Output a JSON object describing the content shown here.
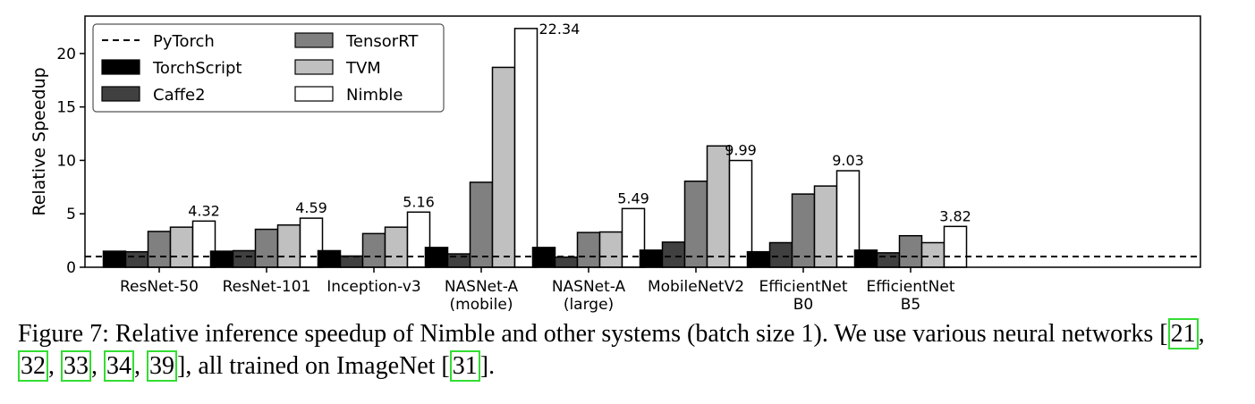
{
  "chart_data": {
    "type": "bar",
    "ylabel": "Relative Speedup",
    "xlabel": "",
    "ylim": [
      0,
      23.5
    ],
    "yticks": [
      0,
      5,
      10,
      15,
      20
    ],
    "grid": false,
    "legend_position": "top-left",
    "categories": [
      [
        "ResNet-50"
      ],
      [
        "ResNet-101"
      ],
      [
        "Inception-v3"
      ],
      [
        "NASNet-A",
        "(mobile)"
      ],
      [
        "NASNet-A",
        "(large)"
      ],
      [
        "MobileNetV2"
      ],
      [
        "EfficientNet",
        "B0"
      ],
      [
        "EfficientNet",
        "B5"
      ]
    ],
    "baseline": {
      "name": "PyTorch",
      "value": 1.0,
      "style": "dashed"
    },
    "series": [
      {
        "name": "TorchScript",
        "color": "#000000",
        "values": [
          1.5,
          1.5,
          1.55,
          1.85,
          1.85,
          1.6,
          1.45,
          1.6
        ]
      },
      {
        "name": "Caffe2",
        "color": "#404040",
        "values": [
          1.45,
          1.55,
          1.05,
          1.25,
          0.95,
          2.35,
          2.3,
          1.35
        ]
      },
      {
        "name": "TensorRT",
        "color": "#808080",
        "values": [
          3.35,
          3.55,
          3.15,
          7.95,
          3.25,
          8.05,
          6.85,
          2.95
        ]
      },
      {
        "name": "TVM",
        "color": "#c0c0c0",
        "values": [
          3.75,
          3.95,
          3.75,
          18.7,
          3.3,
          11.35,
          7.6,
          2.3
        ]
      },
      {
        "name": "Nimble",
        "color": "#ffffff",
        "values": [
          4.32,
          4.59,
          5.16,
          22.34,
          5.49,
          9.99,
          9.03,
          3.82
        ]
      }
    ],
    "data_labels": [
      "4.32",
      "4.59",
      "5.16",
      "22.34",
      "5.49",
      "9.99",
      "9.03",
      "3.82"
    ]
  },
  "caption": {
    "t1": "Figure 7: Relative inference speedup of Nimble and other systems (batch size 1). We use various neural networks [",
    "r1": "21",
    "s1": ", ",
    "r2": "32",
    "s2": ", ",
    "r3": "33",
    "s3": ", ",
    "r4": "34",
    "s4": ", ",
    "r5": "39",
    "t2": "], all trained on ImageNet [",
    "r6": "31",
    "t3": "]."
  }
}
